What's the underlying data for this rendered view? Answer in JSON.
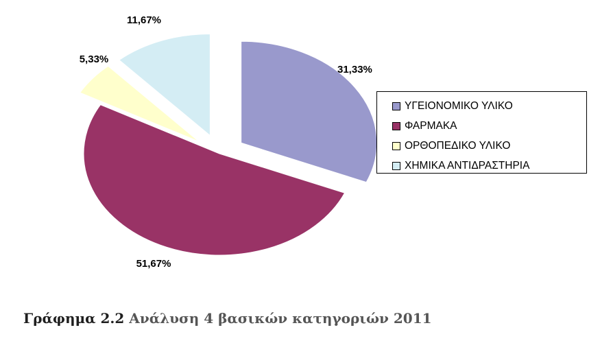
{
  "chart_data": {
    "type": "pie",
    "title": "",
    "exploded": true,
    "legend_position": "right",
    "slices": [
      {
        "label": "ΥΓΕΙΟΝΟΜΙΚΟ ΥΛΙΚΟ",
        "value": 31.33,
        "value_label": "31,33%",
        "color": "#9999cc"
      },
      {
        "label": "ΦΑΡΜΑΚΑ",
        "value": 51.67,
        "value_label": "51,67%",
        "color": "#993366"
      },
      {
        "label": "ΟΡΘΟΠΕΔΙΚΟ ΥΛΙΚΟ",
        "value": 5.33,
        "value_label": "5,33%",
        "color": "#ffffcc"
      },
      {
        "label": "ΧΗΜΙΚΑ ΑΝΤΙΔΡΑΣΤΗΡΙΑ",
        "value": 11.67,
        "value_label": "11,67%",
        "color": "#d4edf4"
      }
    ]
  },
  "caption": {
    "prefix": "Γράφημα 2.2",
    "text": "Ανάλυση 4 βασικών κατηγοριών 2011"
  }
}
